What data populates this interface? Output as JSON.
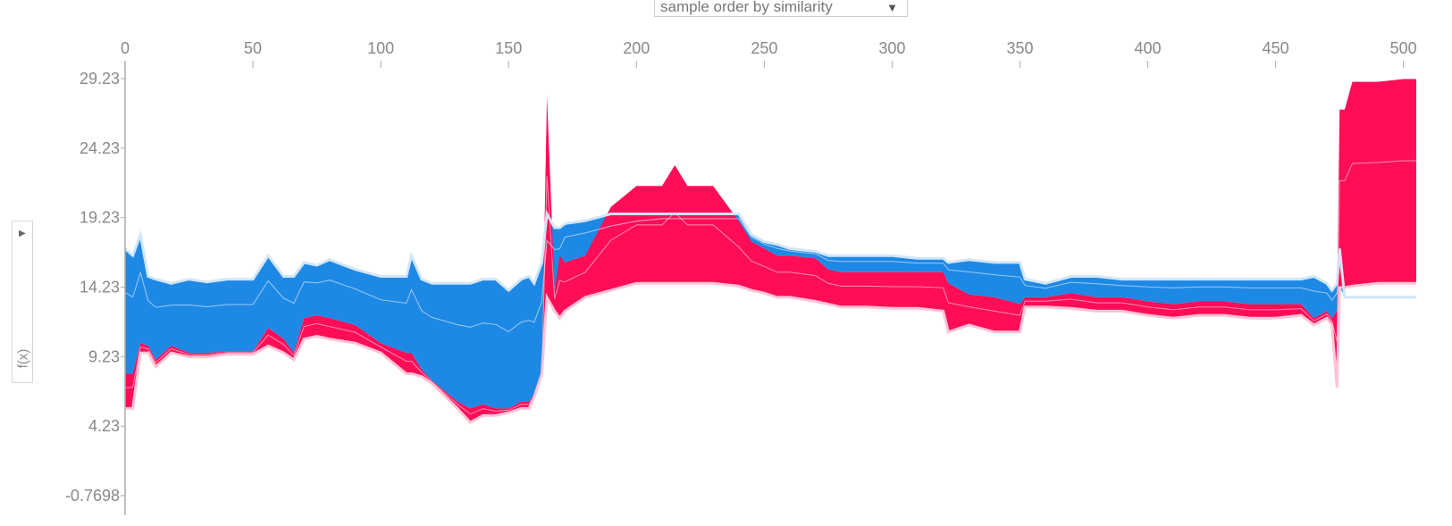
{
  "controls": {
    "order_select": {
      "selected": "sample order by similarity",
      "arrow_icon": "triangle-down-icon"
    },
    "ylabel_toggle_icon": "triangle-right-icon",
    "ylabel": "f(x)"
  },
  "chart_data": {
    "type": "area",
    "title": "",
    "xlabel": "",
    "ylabel": "f(x)",
    "x_ticks": [
      0,
      50,
      100,
      150,
      200,
      250,
      300,
      350,
      400,
      450,
      500
    ],
    "x_tick_labels": [
      "0",
      "50",
      "100",
      "150",
      "200",
      "250",
      "300",
      "350",
      "400",
      "450",
      "500"
    ],
    "y_ticks": [
      29.23,
      24.23,
      19.23,
      14.23,
      9.23,
      4.23,
      -0.7698
    ],
    "y_tick_labels": [
      "29.23",
      "24.23",
      "19.23",
      "14.23",
      "9.23",
      "4.23",
      "-0.7698"
    ],
    "xlim": [
      0,
      505
    ],
    "ylim": [
      -0.7698,
      29.23
    ],
    "colors": {
      "positive": "#ff0d57",
      "negative": "#1e88e5",
      "positive_edge": "#ffc3d5",
      "negative_edge": "#d1e6fa"
    },
    "x": [
      0,
      3,
      6,
      9,
      12,
      18,
      25,
      32,
      40,
      50,
      56,
      62,
      66,
      70,
      75,
      80,
      90,
      100,
      110,
      112,
      116,
      120,
      130,
      135,
      140,
      145,
      150,
      155,
      158,
      160,
      163,
      165,
      168,
      170,
      172,
      180,
      190,
      200,
      210,
      215,
      220,
      230,
      240,
      245,
      250,
      255,
      260,
      270,
      275,
      280,
      290,
      300,
      310,
      320,
      322,
      330,
      340,
      350,
      352,
      360,
      370,
      380,
      390,
      400,
      410,
      420,
      430,
      440,
      450,
      460,
      465,
      470,
      472,
      474,
      475,
      477,
      480,
      490,
      500,
      505
    ],
    "series": [
      {
        "name": "",
        "role": "negative (lowers value)",
        "top": [
          17.0,
          16.5,
          18.0,
          15.0,
          14.8,
          14.5,
          14.8,
          14.6,
          14.8,
          14.8,
          16.5,
          15.0,
          15.0,
          16.0,
          15.8,
          16.2,
          15.5,
          15.0,
          15.0,
          16.5,
          14.8,
          14.5,
          14.5,
          14.5,
          14.8,
          14.8,
          14.0,
          14.8,
          15.0,
          14.5,
          16.0,
          19.5,
          18.5,
          18.5,
          18.8,
          19.0,
          19.5,
          19.5,
          19.5,
          19.5,
          19.5,
          19.5,
          19.5,
          18.0,
          17.5,
          17.3,
          17.0,
          16.8,
          16.5,
          16.5,
          16.5,
          16.5,
          16.3,
          16.3,
          16.0,
          16.2,
          16.0,
          16.0,
          14.8,
          14.5,
          15.0,
          15.0,
          14.8,
          14.8,
          14.8,
          14.8,
          14.8,
          14.8,
          14.8,
          14.8,
          15.0,
          14.5,
          14.0,
          14.5,
          17.0,
          13.5,
          13.5,
          13.5,
          13.5,
          13.5
        ],
        "bottom": [
          8.0,
          8.0,
          10.2,
          10.0,
          9.0,
          10.0,
          9.5,
          9.5,
          9.6,
          9.6,
          11.3,
          10.5,
          9.5,
          12.0,
          12.2,
          12.0,
          11.5,
          10.2,
          9.5,
          9.5,
          8.3,
          7.5,
          6.0,
          5.5,
          5.8,
          5.5,
          5.5,
          6.0,
          6.0,
          6.5,
          8.0,
          14.0,
          14.0,
          14.2,
          16.0,
          16.5,
          17.0,
          18.0,
          18.5,
          18.5,
          18.5,
          18.5,
          18.5,
          17.5,
          17.0,
          16.5,
          16.5,
          16.3,
          15.5,
          15.3,
          15.3,
          15.3,
          15.3,
          15.3,
          14.5,
          13.7,
          13.5,
          13.0,
          13.5,
          13.5,
          13.8,
          13.5,
          13.5,
          13.2,
          13.0,
          13.2,
          13.2,
          13.0,
          13.0,
          13.0,
          12.0,
          12.5,
          12.0,
          12.5,
          14.3,
          13.5,
          13.5,
          13.5,
          13.5,
          13.5
        ]
      },
      {
        "name": "",
        "role": "positive (raises value)",
        "top": [
          8.0,
          8.0,
          10.2,
          10.0,
          9.0,
          10.0,
          9.5,
          9.5,
          9.6,
          9.6,
          11.3,
          10.5,
          9.5,
          12.0,
          12.2,
          12.0,
          11.5,
          10.2,
          9.5,
          9.5,
          8.3,
          7.5,
          6.0,
          5.5,
          5.8,
          5.5,
          5.5,
          6.0,
          6.0,
          6.5,
          8.0,
          28.0,
          14.0,
          16.5,
          16.0,
          16.5,
          20.0,
          21.5,
          21.5,
          23.0,
          21.5,
          21.5,
          19.0,
          17.5,
          17.0,
          16.5,
          16.5,
          16.3,
          15.5,
          15.3,
          15.3,
          15.3,
          15.3,
          15.3,
          14.5,
          13.7,
          13.5,
          13.0,
          13.5,
          13.5,
          13.8,
          13.5,
          13.5,
          13.2,
          13.0,
          13.2,
          13.2,
          13.0,
          13.0,
          13.0,
          12.0,
          12.5,
          12.0,
          12.5,
          27.0,
          27.0,
          29.0,
          29.0,
          29.2,
          29.2
        ],
        "bottom": [
          5.5,
          5.5,
          9.5,
          9.5,
          8.5,
          9.5,
          9.2,
          9.2,
          9.4,
          9.4,
          10.0,
          9.5,
          9.0,
          10.5,
          10.7,
          10.5,
          10.2,
          9.5,
          8.0,
          8.0,
          7.8,
          7.3,
          5.5,
          4.5,
          5.0,
          5.0,
          5.2,
          5.5,
          5.5,
          6.3,
          8.0,
          13.5,
          12.5,
          12.0,
          12.5,
          13.5,
          14.0,
          14.5,
          14.5,
          14.5,
          14.5,
          14.5,
          14.3,
          14.0,
          13.8,
          13.5,
          13.5,
          13.2,
          13.0,
          12.8,
          12.8,
          12.7,
          12.7,
          12.5,
          11.0,
          11.5,
          11.0,
          11.0,
          12.8,
          12.8,
          12.7,
          12.5,
          12.5,
          12.2,
          12.0,
          12.2,
          12.2,
          12.0,
          12.0,
          12.2,
          11.5,
          12.0,
          11.5,
          7.0,
          14.2,
          14.2,
          14.3,
          14.5,
          14.5,
          14.5
        ]
      }
    ]
  }
}
